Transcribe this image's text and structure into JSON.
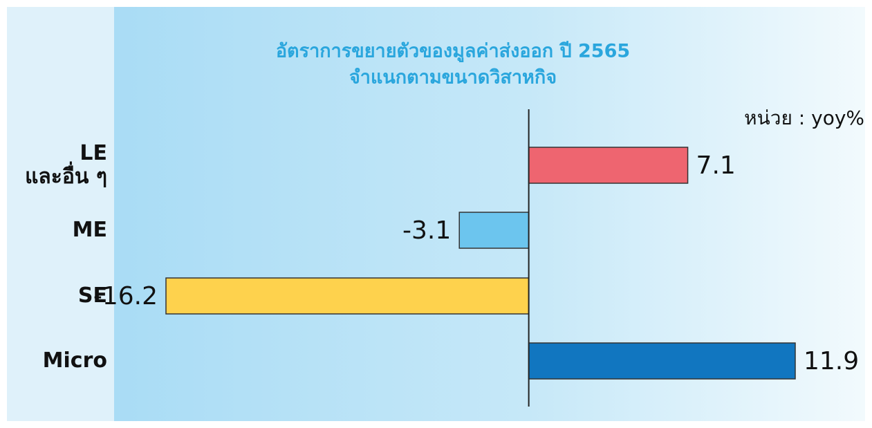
{
  "chart_data": {
    "type": "bar",
    "orientation": "horizontal",
    "title": "อัตราการขยายตัวของมูลค่าส่งออก ปี 2565",
    "subtitle": "จำแนกตามขนาดวิสาหกิจ",
    "unit_label": "หน่วย : yoy%",
    "categories": [
      "LE\nและอื่น ๆ",
      "ME",
      "SE",
      "Micro"
    ],
    "values": [
      7.1,
      -3.1,
      -16.2,
      11.9
    ],
    "colors": [
      "#ee6570",
      "#6cc5ee",
      "#fed24d",
      "#1176c0"
    ]
  }
}
